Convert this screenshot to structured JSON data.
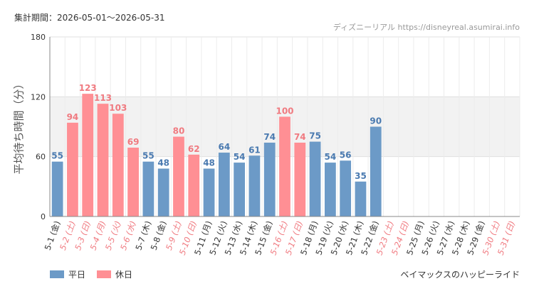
{
  "header": {
    "period": "集計期間：2026-05-01～2026-05-31",
    "site": "ディズニーリアル https://disneyreal.asumirai.info"
  },
  "colors": {
    "weekday": "#6c9ac7",
    "holiday": "#ff8f94",
    "weekday_label": "#4a7ab0",
    "holiday_label": "#f07a80",
    "grid_band": "#f2f2f2"
  },
  "legend": {
    "weekday": "平日",
    "holiday": "休日"
  },
  "footer": {
    "attraction": "ベイマックスのハッピーライド"
  },
  "chart_data": {
    "type": "bar",
    "ylabel": "平均待ち時間（分）",
    "ylim": [
      0,
      180
    ],
    "yticks": [
      0,
      60,
      120,
      180
    ],
    "grid": true,
    "categories": [
      "5-1 (金)",
      "5-2 (土)",
      "5-3 (日)",
      "5-4 (月)",
      "5-5 (火)",
      "5-6 (水)",
      "5-7 (木)",
      "5-8 (金)",
      "5-9 (土)",
      "5-10 (日)",
      "5-11 (月)",
      "5-12 (火)",
      "5-13 (水)",
      "5-14 (木)",
      "5-15 (金)",
      "5-16 (土)",
      "5-17 (日)",
      "5-18 (月)",
      "5-19 (火)",
      "5-20 (水)",
      "5-21 (木)",
      "5-22 (金)",
      "5-23 (土)",
      "5-24 (日)",
      "5-25 (月)",
      "5-26 (火)",
      "5-27 (水)",
      "5-28 (木)",
      "5-29 (金)",
      "5-30 (土)",
      "5-31 (日)"
    ],
    "values": [
      55,
      94,
      123,
      113,
      103,
      69,
      55,
      48,
      80,
      62,
      48,
      64,
      54,
      61,
      74,
      100,
      74,
      75,
      54,
      56,
      35,
      90,
      null,
      null,
      null,
      null,
      null,
      null,
      null,
      null,
      null
    ],
    "day_type": [
      "平日",
      "休日",
      "休日",
      "休日",
      "休日",
      "休日",
      "平日",
      "平日",
      "休日",
      "休日",
      "平日",
      "平日",
      "平日",
      "平日",
      "平日",
      "休日",
      "休日",
      "平日",
      "平日",
      "平日",
      "平日",
      "平日",
      "休日",
      "休日",
      "平日",
      "平日",
      "平日",
      "平日",
      "平日",
      "休日",
      "休日"
    ]
  }
}
